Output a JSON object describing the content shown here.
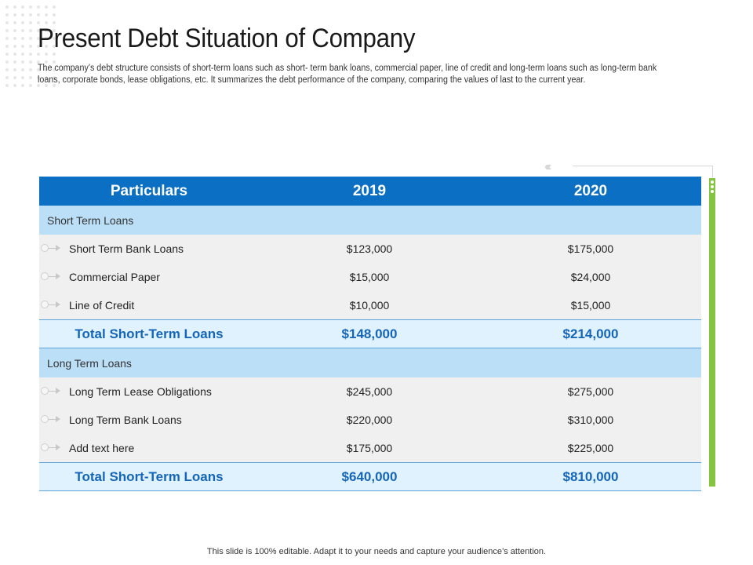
{
  "title": "Present Debt Situation of Company",
  "description": "The company’s debt structure consists of short-term loans such as short- term bank loans, commercial paper, line of credit and long-term loans such as long-term bank loans, corporate bonds, lease obligations, etc. It summarizes the debt performance of the company, comparing the values of last to the current year.",
  "table": {
    "headers": [
      "Particulars",
      "2019",
      "2020"
    ],
    "sections": [
      {
        "label": "Short Term Loans",
        "rows": [
          {
            "label": "Short Term Bank Loans",
            "v2019": "$123,000",
            "v2020": "$175,000"
          },
          {
            "label": "Commercial Paper",
            "v2019": "$15,000",
            "v2020": "$24,000"
          },
          {
            "label": "Line of Credit",
            "v2019": "$10,000",
            "v2020": "$15,000"
          }
        ],
        "total": {
          "label": "Total Short-Term Loans",
          "v2019": "$148,000",
          "v2020": "$214,000"
        }
      },
      {
        "label": "Long Term Loans",
        "rows": [
          {
            "label": "Long Term Lease Obligations",
            "v2019": "$245,000",
            "v2020": "$275,000"
          },
          {
            "label": "Long Term Bank Loans",
            "v2019": "$220,000",
            "v2020": "$310,000"
          },
          {
            "label": "Add text here",
            "v2019": "$175,000",
            "v2020": "$225,000"
          }
        ],
        "total": {
          "label": "Total Short-Term Loans",
          "v2019": "$640,000",
          "v2020": "$810,000"
        }
      }
    ]
  },
  "footer": "This slide is 100% editable. Adapt it to your needs and capture your audience’s attention.",
  "colors": {
    "header_blue": "#0b6fc3",
    "section_blue": "#bcdff8",
    "total_text": "#1565b8",
    "accent_green": "#84c441"
  }
}
